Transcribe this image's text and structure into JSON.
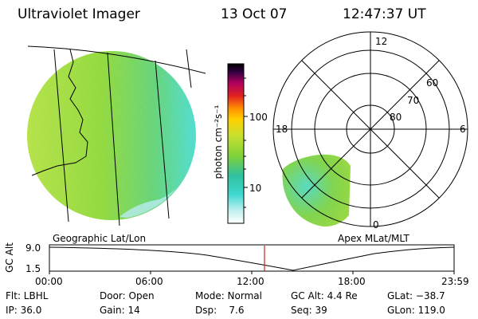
{
  "header": {
    "title": "Ultraviolet Imager",
    "date": "13 Oct 07",
    "time": "12:47:37 UT"
  },
  "colorbar": {
    "unit_label": "photon cm⁻²s⁻¹",
    "ticks": [
      "100",
      "10"
    ]
  },
  "geo_panel": {
    "caption": "Geographic Lat/Lon"
  },
  "polar_panel": {
    "caption": "Apex MLat/MLT",
    "mlt_labels": {
      "top": "12",
      "left": "18",
      "right": "6",
      "bottom": "0"
    },
    "lat_labels": [
      "60",
      "70",
      "80"
    ]
  },
  "altitude_plot": {
    "ylabel": "GC Alt",
    "yticks": [
      "9.0",
      "1.5"
    ],
    "xticks": [
      "00:00",
      "06:00",
      "12:00",
      "18:00",
      "23:59"
    ],
    "marker_time": "12:47:37"
  },
  "footer": {
    "flt": "Flt: LBHL",
    "door": "Door: Open",
    "mode": "Mode: Normal",
    "gc_alt": "GC Alt: 4.4 Re",
    "glat": "GLat: −38.7",
    "ip": "IP: 36.0",
    "gain": "Gain: 14",
    "dsp": "Dsp:    7.6",
    "seq": "Seq: 39",
    "glon": "GLon: 119.0"
  },
  "colors": {
    "marker": "#d02020",
    "image_green": "#7ed23a",
    "image_cyan": "#40d8d0"
  }
}
